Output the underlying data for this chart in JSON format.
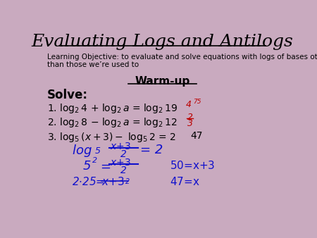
{
  "title": "Evaluating Logs and Antilogs",
  "background_color": "#C9AABF",
  "title_color": "#000000",
  "title_fontsize": 18,
  "objective_text": "Learning Objective: to evaluate and solve equations with logs of bases other\nthan those we’re used to",
  "warmup_text": "Warm-up",
  "solve_text": "Solve:",
  "answer1": "4.75",
  "answer2_num": "2",
  "answer2_den": "3",
  "answer3": "47",
  "handwritten_color": "#1010CC",
  "answer_color": "#BB0000",
  "figsize": [
    4.5,
    3.38
  ],
  "dpi": 100
}
